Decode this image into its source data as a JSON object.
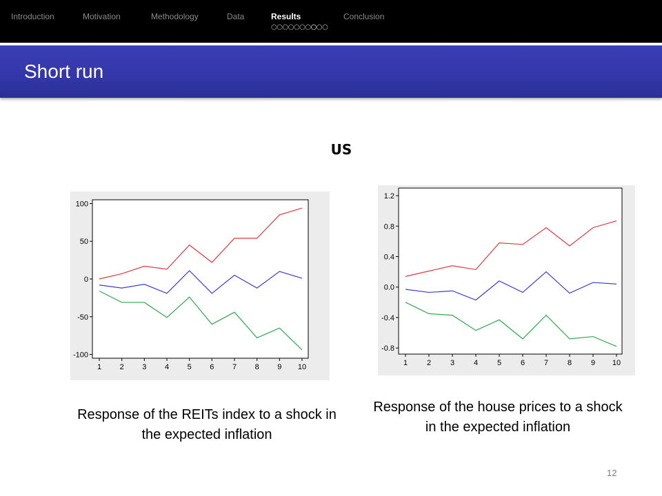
{
  "nav": {
    "items": [
      {
        "label": "Introduction",
        "active": false
      },
      {
        "label": "Motivation",
        "active": false
      },
      {
        "label": "Methodology",
        "active": false
      },
      {
        "label": "Data",
        "active": false
      },
      {
        "label": "Results",
        "active": true
      },
      {
        "label": "Conclusion",
        "active": false
      }
    ],
    "results_progress": {
      "total": 10,
      "current": 8
    }
  },
  "slide": {
    "title": "Short run",
    "section": "US",
    "page_number": "12"
  },
  "captions": {
    "left": "Response of  the REITs index to a shock in the expected inflation",
    "right": "Response of  the house  prices  to a shock in the expected inflation"
  },
  "colors": {
    "red": "#e0393e",
    "blue": "#3a3fd0",
    "green": "#2ea84f",
    "title_bar": "#3236a8"
  },
  "chart_data": [
    {
      "type": "line",
      "x": [
        1,
        2,
        3,
        4,
        5,
        6,
        7,
        8,
        9,
        10
      ],
      "yticks": [
        100,
        50,
        0,
        -50,
        -100
      ],
      "ylim": [
        -105,
        105
      ],
      "grid": false,
      "series": [
        {
          "color": "#e0393e",
          "values": [
            0,
            7,
            17,
            13,
            45,
            22,
            54,
            54,
            85,
            94
          ]
        },
        {
          "color": "#3a3fd0",
          "values": [
            -8,
            -12,
            -7,
            -19,
            11,
            -19,
            5,
            -12,
            10,
            1
          ]
        },
        {
          "color": "#2ea84f",
          "values": [
            -16,
            -31,
            -31,
            -51,
            -24,
            -60,
            -44,
            -78,
            -65,
            -94
          ]
        }
      ]
    },
    {
      "type": "line",
      "x": [
        1,
        2,
        3,
        4,
        5,
        6,
        7,
        8,
        9,
        10
      ],
      "yticks": [
        1.2,
        0.8,
        0.4,
        0.0,
        -0.4,
        -0.8
      ],
      "ytick_labels": [
        "1.2",
        "0.8",
        "0.4",
        "0.0",
        "-0.4",
        "-0.8"
      ],
      "ylim": [
        -0.88,
        1.3
      ],
      "grid": false,
      "series": [
        {
          "color": "#e0393e",
          "values": [
            0.14,
            0.21,
            0.28,
            0.23,
            0.58,
            0.56,
            0.78,
            0.54,
            0.78,
            0.87
          ]
        },
        {
          "color": "#3a3fd0",
          "values": [
            -0.03,
            -0.07,
            -0.05,
            -0.17,
            0.08,
            -0.07,
            0.2,
            -0.08,
            0.06,
            0.04
          ]
        },
        {
          "color": "#2ea84f",
          "values": [
            -0.2,
            -0.35,
            -0.37,
            -0.57,
            -0.43,
            -0.68,
            -0.37,
            -0.68,
            -0.65,
            -0.78
          ]
        }
      ]
    }
  ]
}
